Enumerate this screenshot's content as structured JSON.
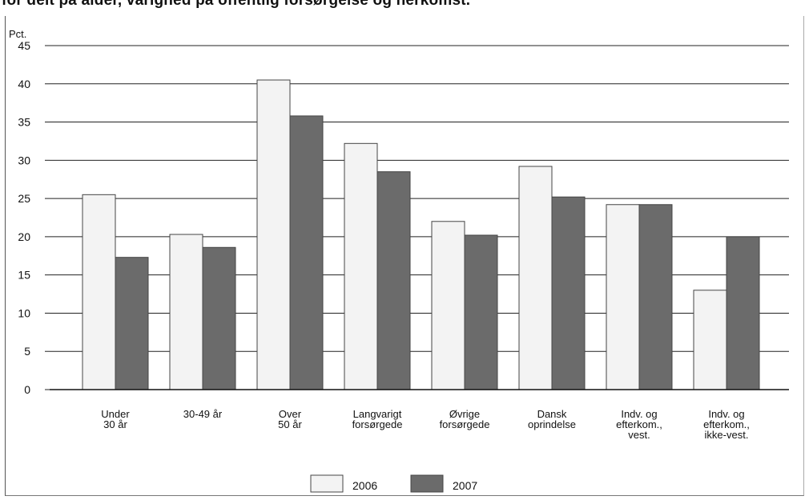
{
  "title": "for delt på alder, varighed på offentlig forsørgelse og herkomst.",
  "chart_data": {
    "type": "bar",
    "unit_label": "Pct.",
    "ylim": [
      0,
      45
    ],
    "yticks": [
      "0",
      "5",
      "10",
      "15",
      "20",
      "25",
      "30",
      "35",
      "40",
      "45"
    ],
    "grid": true,
    "legend_position": "bottom",
    "categories": [
      [
        "Under",
        "30 år"
      ],
      [
        "30-49 år"
      ],
      [
        "Over",
        "50 år"
      ],
      [
        "Langvarigt",
        "forsørgede"
      ],
      [
        "Øvrige",
        "forsørgede"
      ],
      [
        "Dansk",
        "oprindelse"
      ],
      [
        "Indv. og",
        "efterkom.,",
        "vest."
      ],
      [
        "Indv. og",
        "efterkom.,",
        "ikke-vest."
      ]
    ],
    "series": [
      {
        "name": "2006",
        "color": "#f3f3f3",
        "values": [
          25.5,
          20.3,
          40.5,
          32.2,
          22.0,
          29.2,
          24.2,
          13.0
        ]
      },
      {
        "name": "2007",
        "color": "#6b6b6b",
        "values": [
          17.3,
          18.6,
          35.8,
          28.5,
          20.2,
          25.2,
          24.2,
          20.0
        ]
      }
    ]
  }
}
